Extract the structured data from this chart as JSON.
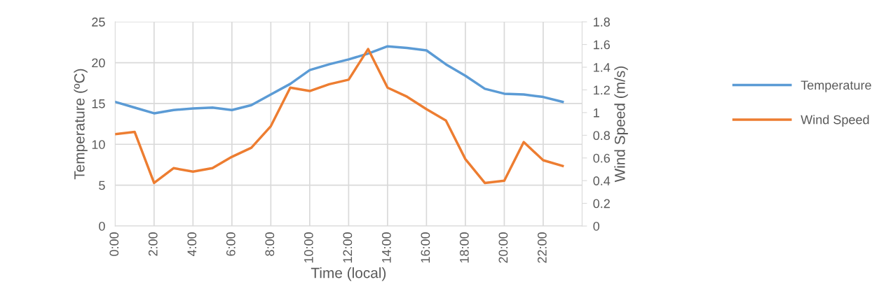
{
  "chart_data": {
    "type": "line",
    "xlabel": "Time (local)",
    "ylabel": "Temperature (ºC)",
    "y2label": "Wind Speed (m/s)",
    "categories": [
      "0:00",
      null,
      "2:00",
      null,
      "4:00",
      null,
      "6:00",
      null,
      "8:00",
      null,
      "10:00",
      null,
      "12:00",
      null,
      "14:00",
      null,
      "16:00",
      null,
      "18:00",
      null,
      "20:00",
      null,
      "22:00",
      null
    ],
    "series": [
      {
        "name": "Temperature",
        "color": "#5b9bd5",
        "values": [
          15.2,
          14.5,
          13.8,
          14.2,
          14.4,
          14.5,
          14.2,
          14.8,
          16.1,
          17.4,
          19.1,
          19.8,
          20.4,
          21.1,
          22.0,
          21.8,
          21.5,
          19.8,
          18.4,
          16.8,
          16.2,
          16.1,
          15.8,
          15.2
        ]
      },
      {
        "name": "Wind Speed",
        "color": "#ed7d31",
        "axis": "y2",
        "values": [
          0.81,
          0.83,
          0.38,
          0.51,
          0.48,
          0.51,
          0.61,
          0.69,
          0.88,
          1.22,
          1.19,
          1.25,
          1.29,
          1.56,
          1.22,
          1.14,
          1.03,
          0.93,
          0.59,
          0.38,
          0.4,
          0.74,
          0.58,
          0.53
        ]
      }
    ],
    "ylim": [
      0,
      25
    ],
    "yticks": [
      0,
      5,
      10,
      15,
      20,
      25
    ],
    "y2lim": [
      0,
      1.8
    ],
    "y2ticks": [
      0,
      0.2,
      0.4,
      0.6,
      0.8,
      1,
      1.2,
      1.4,
      1.6,
      1.8
    ],
    "grid": true,
    "legend": "right",
    "marker": "none",
    "line_style": "solid"
  }
}
